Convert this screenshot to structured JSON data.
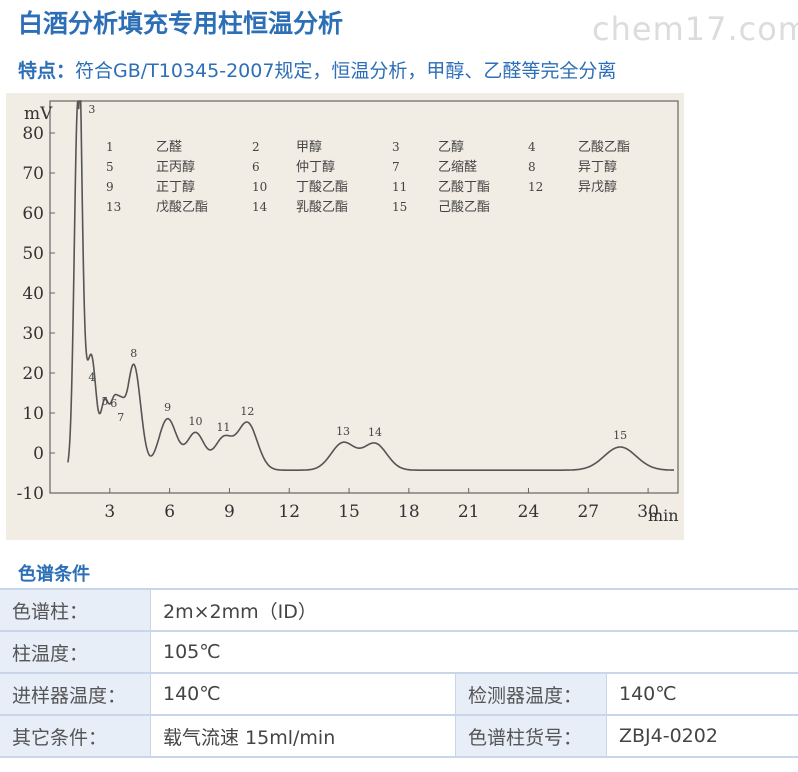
{
  "header": {
    "title": "白酒分析填充专用柱恒温分析",
    "watermark": "chem17.com",
    "features_key": "特点：",
    "features_text": "符合GB/T10345-2007规定，恒温分析，甲醇、乙醛等完全分离"
  },
  "chart_data": {
    "type": "line",
    "ylabel": "mV",
    "xlabel": "min",
    "ylim": [
      -10,
      88
    ],
    "xlim": [
      0,
      31.5
    ],
    "y_ticks": [
      -10,
      0,
      10,
      20,
      30,
      40,
      50,
      60,
      70,
      80
    ],
    "x_ticks": [
      3,
      6,
      9,
      12,
      15,
      18,
      21,
      24,
      27,
      30
    ],
    "grid": false,
    "peaks": [
      {
        "label": "3",
        "x": 1.4,
        "y": 88,
        "width": 0.18
      },
      {
        "label": "4",
        "x": 2.1,
        "y": 16,
        "width": 0.22
      },
      {
        "label": "5",
        "x": 2.75,
        "y": 10,
        "width": 0.2
      },
      {
        "label": "6",
        "x": 3.2,
        "y": 9.5,
        "width": 0.2
      },
      {
        "label": "7",
        "x": 3.55,
        "y": 6,
        "width": 0.2
      },
      {
        "label": "8",
        "x": 4.2,
        "y": 22,
        "width": 0.35
      },
      {
        "label": "9",
        "x": 5.9,
        "y": 8.5,
        "width": 0.45
      },
      {
        "label": "10",
        "x": 7.3,
        "y": 5,
        "width": 0.45
      },
      {
        "label": "11",
        "x": 8.7,
        "y": 3.5,
        "width": 0.45
      },
      {
        "label": "12",
        "x": 9.9,
        "y": 7.5,
        "width": 0.5
      },
      {
        "label": "13",
        "x": 14.7,
        "y": 2.5,
        "width": 0.6
      },
      {
        "label": "14",
        "x": 16.3,
        "y": 2.3,
        "width": 0.6
      },
      {
        "label": "15",
        "x": 28.6,
        "y": 1.5,
        "width": 0.8
      }
    ],
    "legend": [
      {
        "num": "1",
        "name": "乙醛"
      },
      {
        "num": "2",
        "name": "甲醇"
      },
      {
        "num": "3",
        "name": "乙醇"
      },
      {
        "num": "4",
        "name": "乙酸乙酯"
      },
      {
        "num": "5",
        "name": "正丙醇"
      },
      {
        "num": "6",
        "name": "仲丁醇"
      },
      {
        "num": "7",
        "name": "乙缩醛"
      },
      {
        "num": "8",
        "name": "异丁醇"
      },
      {
        "num": "9",
        "name": "正丁醇"
      },
      {
        "num": "10",
        "name": "丁酸乙酯"
      },
      {
        "num": "11",
        "name": "乙酸丁酯"
      },
      {
        "num": "12",
        "name": "异戊醇"
      },
      {
        "num": "13",
        "name": "戊酸乙酯"
      },
      {
        "num": "14",
        "name": "乳酸乙酯"
      },
      {
        "num": "15",
        "name": "己酸乙酯"
      }
    ],
    "line_color": "#555555"
  },
  "conditions": {
    "title": "色谱条件",
    "rows": [
      {
        "label": "色谱柱：",
        "value": "2m×2mm（ID）"
      },
      {
        "label": "柱温度：",
        "value": "105℃"
      },
      {
        "label": "进样器温度：",
        "value": "140℃",
        "label2": "检测器温度：",
        "value2": "140℃"
      },
      {
        "label": "其它条件：",
        "value": "载气流速 15ml/min",
        "label2": "色谱柱货号：",
        "value2": "ZBJ4-0202"
      }
    ]
  }
}
